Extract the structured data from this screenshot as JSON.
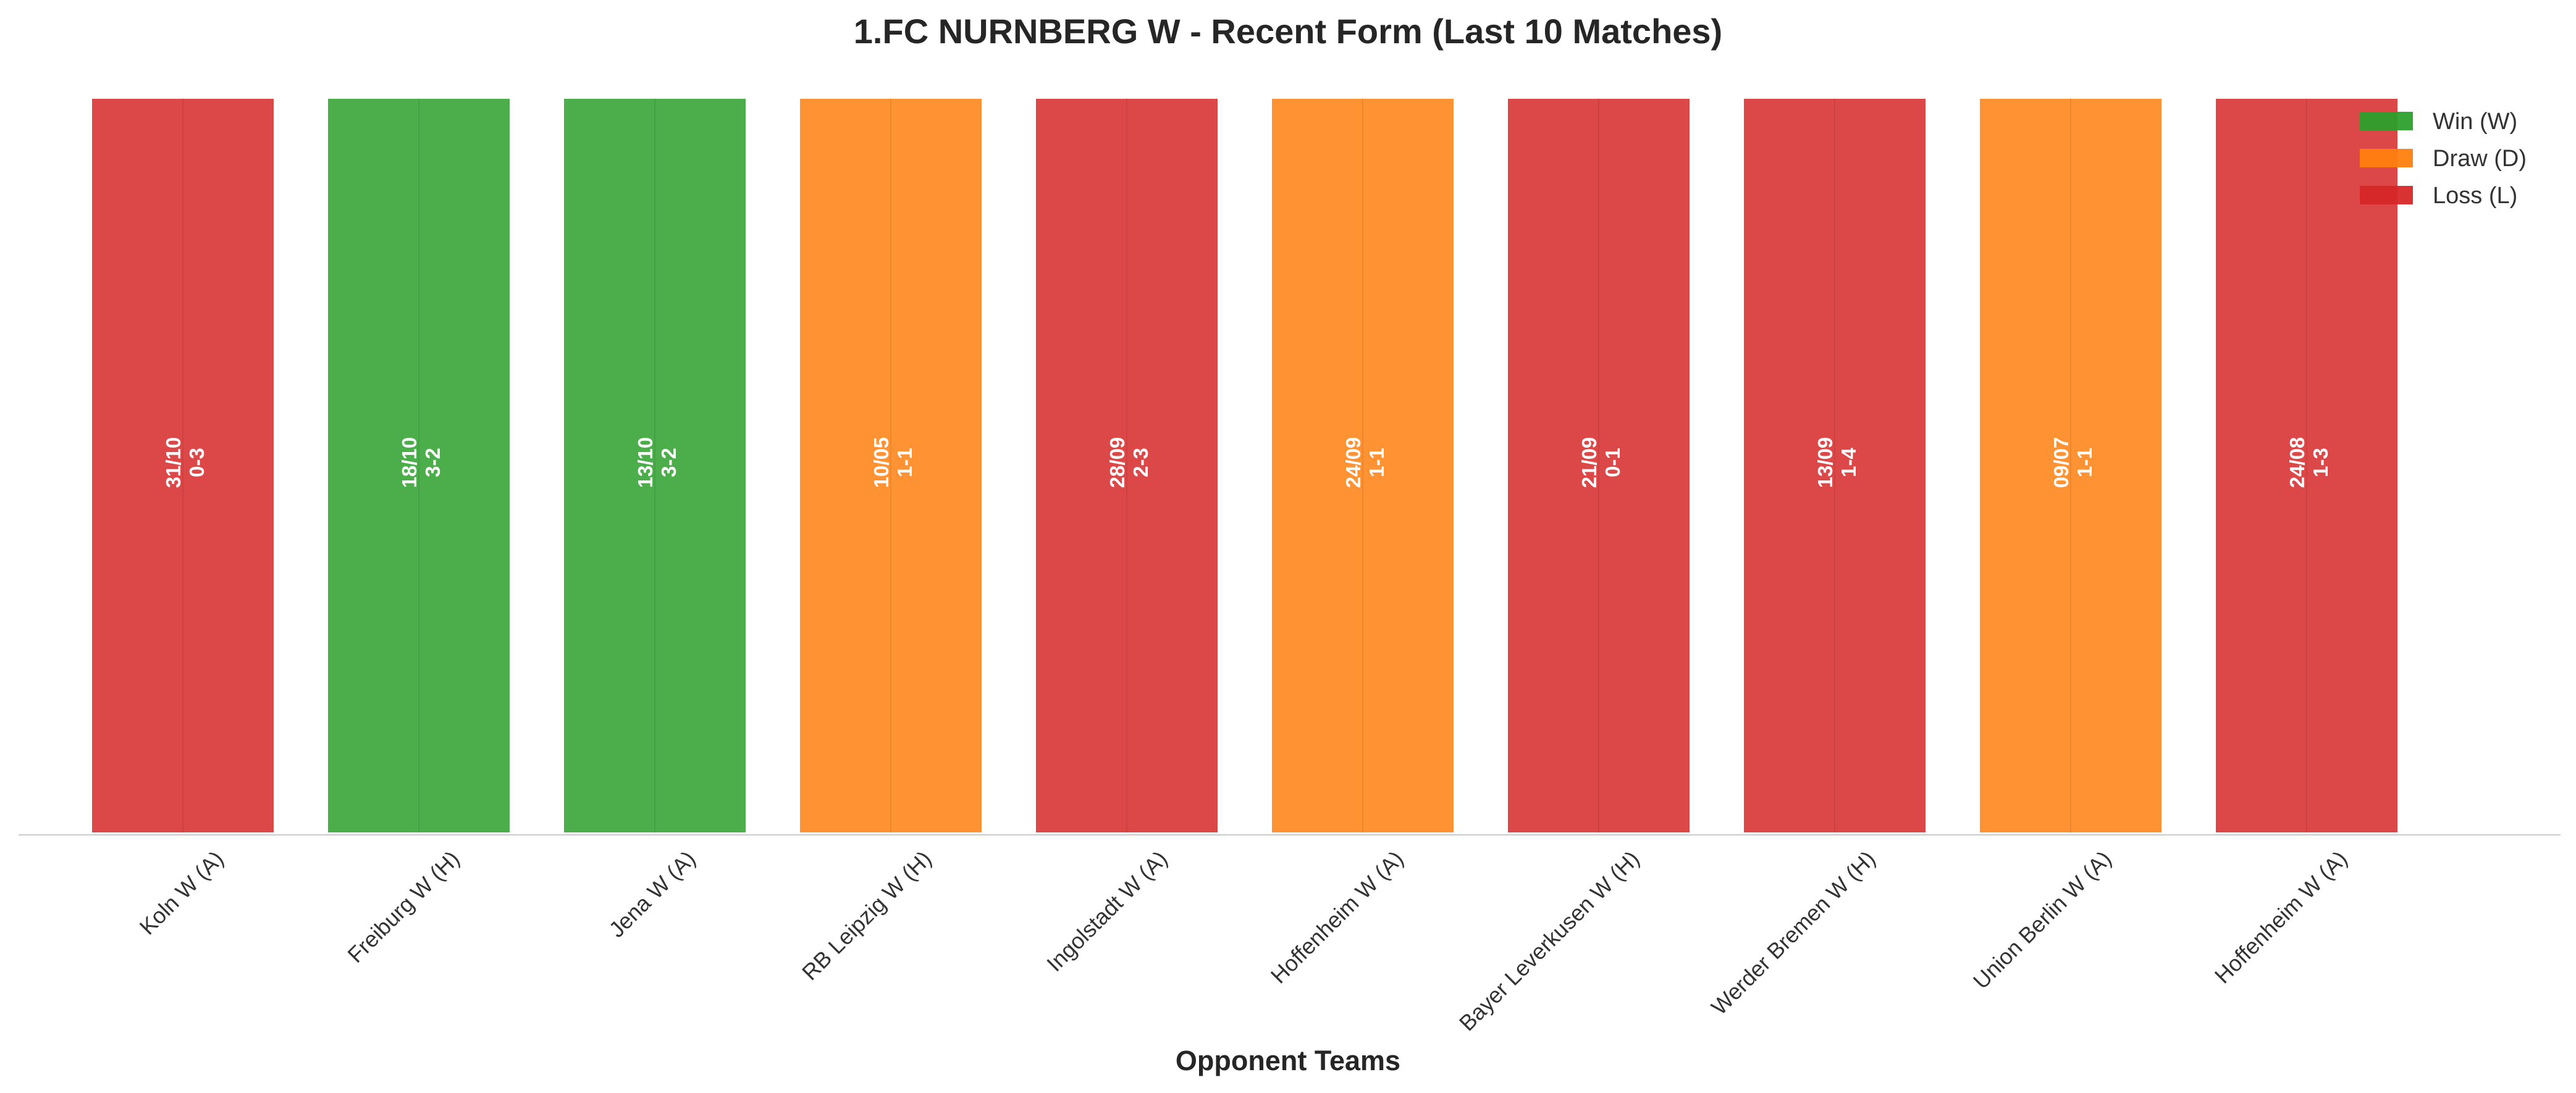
{
  "chart_data": {
    "type": "bar",
    "title": "1.FC NURNBERG W - Recent Form (Last 10 Matches)",
    "xlabel": "Opponent Teams",
    "ylabel": "",
    "categories": [
      "Koln W (A)",
      "Freiburg W (H)",
      "Jena W (A)",
      "RB Leipzig W (H)",
      "Ingolstadt W (A)",
      "Hoffenheim W (A)",
      "Bayer Leverkusen W (H)",
      "Werder Bremen W (H)",
      "Union Berlin W (A)",
      "Hoffenheim W (A)"
    ],
    "values": [
      1,
      1,
      1,
      1,
      1,
      1,
      1,
      1,
      1,
      1
    ],
    "results": [
      "L",
      "W",
      "W",
      "D",
      "L",
      "D",
      "L",
      "L",
      "D",
      "L"
    ],
    "dates": [
      "31/10",
      "18/10",
      "13/10",
      "10/05",
      "28/09",
      "24/09",
      "21/09",
      "13/09",
      "09/07",
      "24/08"
    ],
    "scores": [
      "0-3",
      "3-2",
      "3-2",
      "1-1",
      "2-3",
      "1-1",
      "0-1",
      "1-4",
      "1-1",
      "1-3"
    ],
    "grid": false,
    "legend_position": "top-right",
    "legend": [
      {
        "key": "W",
        "label": "Win (W)",
        "color": "#2ca02c"
      },
      {
        "key": "D",
        "label": "Draw (D)",
        "color": "#ff7f0e"
      },
      {
        "key": "L",
        "label": "Loss (L)",
        "color": "#d62728"
      }
    ],
    "colors": {
      "W": "#2ca02c",
      "D": "#ff7f0e",
      "L": "#d62728"
    }
  }
}
